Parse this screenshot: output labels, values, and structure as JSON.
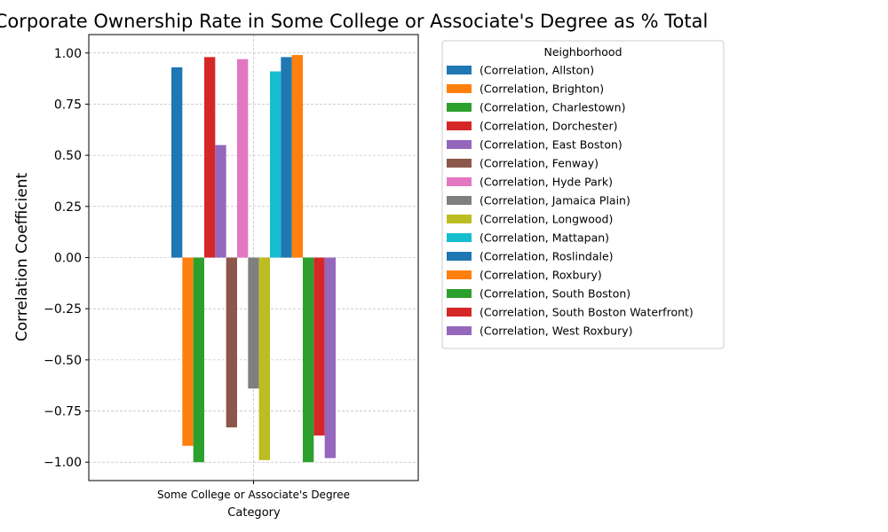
{
  "chart_data": {
    "type": "bar",
    "title": "Correlation Between Corporate Ownership Rate in Some College or Associate's Degree as % Total",
    "xlabel": "Category",
    "ylabel": "Correlation Coefficient",
    "categories": [
      "Some College or Associate's Degree"
    ],
    "ylim": [
      -1.09,
      1.09
    ],
    "yticks": [
      -1.0,
      -0.75,
      -0.5,
      -0.25,
      0.0,
      0.25,
      0.5,
      0.75,
      1.0
    ],
    "ytick_labels": [
      "−1.00",
      "−0.75",
      "−0.50",
      "−0.25",
      "0.00",
      "0.25",
      "0.50",
      "0.75",
      "1.00"
    ],
    "grid": true,
    "legend_title": "Neighborhood",
    "legend_position": "outside-right",
    "series": [
      {
        "name": "(Correlation, Allston)",
        "color": "#1f77b4",
        "values": [
          0.93
        ]
      },
      {
        "name": "(Correlation, Brighton)",
        "color": "#ff7f0e",
        "values": [
          -0.92
        ]
      },
      {
        "name": "(Correlation, Charlestown)",
        "color": "#2ca02c",
        "values": [
          -1.0
        ]
      },
      {
        "name": "(Correlation, Dorchester)",
        "color": "#d62728",
        "values": [
          0.98
        ]
      },
      {
        "name": "(Correlation, East Boston)",
        "color": "#9467bd",
        "values": [
          0.55
        ]
      },
      {
        "name": "(Correlation, Fenway)",
        "color": "#8c564b",
        "values": [
          -0.83
        ]
      },
      {
        "name": "(Correlation, Hyde Park)",
        "color": "#e377c2",
        "values": [
          0.97
        ]
      },
      {
        "name": "(Correlation, Jamaica Plain)",
        "color": "#7f7f7f",
        "values": [
          -0.64
        ]
      },
      {
        "name": "(Correlation, Longwood)",
        "color": "#bcbd22",
        "values": [
          -0.99
        ]
      },
      {
        "name": "(Correlation, Mattapan)",
        "color": "#17becf",
        "values": [
          0.91
        ]
      },
      {
        "name": "(Correlation, Roslindale)",
        "color": "#1f77b4",
        "values": [
          0.98
        ]
      },
      {
        "name": "(Correlation, Roxbury)",
        "color": "#ff7f0e",
        "values": [
          0.99
        ]
      },
      {
        "name": "(Correlation, South Boston)",
        "color": "#2ca02c",
        "values": [
          -1.0
        ]
      },
      {
        "name": "(Correlation, South Boston Waterfront)",
        "color": "#d62728",
        "values": [
          -0.87
        ]
      },
      {
        "name": "(Correlation, West Roxbury)",
        "color": "#9467bd",
        "values": [
          -0.98
        ]
      }
    ]
  }
}
